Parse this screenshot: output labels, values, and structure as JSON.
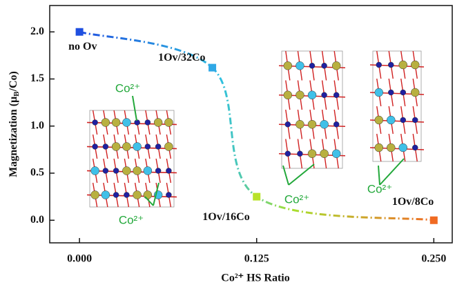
{
  "chart_data": {
    "type": "scatter",
    "xlabel": {
      "main": "Co²⁺ HS Ratio"
    },
    "ylabel": {
      "start": "Magnetization (μ",
      "sub": "B",
      "end": "/Co)"
    },
    "x": [
      0,
      0.09375,
      0.125,
      0.25
    ],
    "values": [
      2.0,
      1.62,
      0.25,
      0.0
    ],
    "colors": [
      "#1f4fe0",
      "#2fa8e6",
      "#b8e22a",
      "#f06a22"
    ],
    "point_labels": [
      "no Ov",
      "1Ov/32Co",
      "1Ov/16Co",
      "1Ov/8Co"
    ],
    "annotations": [
      "Co²⁺",
      "Co²⁺",
      "Co²⁺",
      "Co²⁺"
    ],
    "xlim": [
      -0.021,
      0.263
    ],
    "ylim": [
      -0.24,
      2.28
    ],
    "xticks": [
      {
        "value": 0,
        "label": "0.000"
      },
      0.125,
      {
        "value": 0.25,
        "label": "0.250"
      }
    ],
    "yticks": [
      {
        "value": 0,
        "label": "0.0"
      },
      0.5,
      {
        "value": 1,
        "label": "1.0"
      },
      1.5,
      {
        "value": 2,
        "label": "2.0"
      }
    ]
  }
}
